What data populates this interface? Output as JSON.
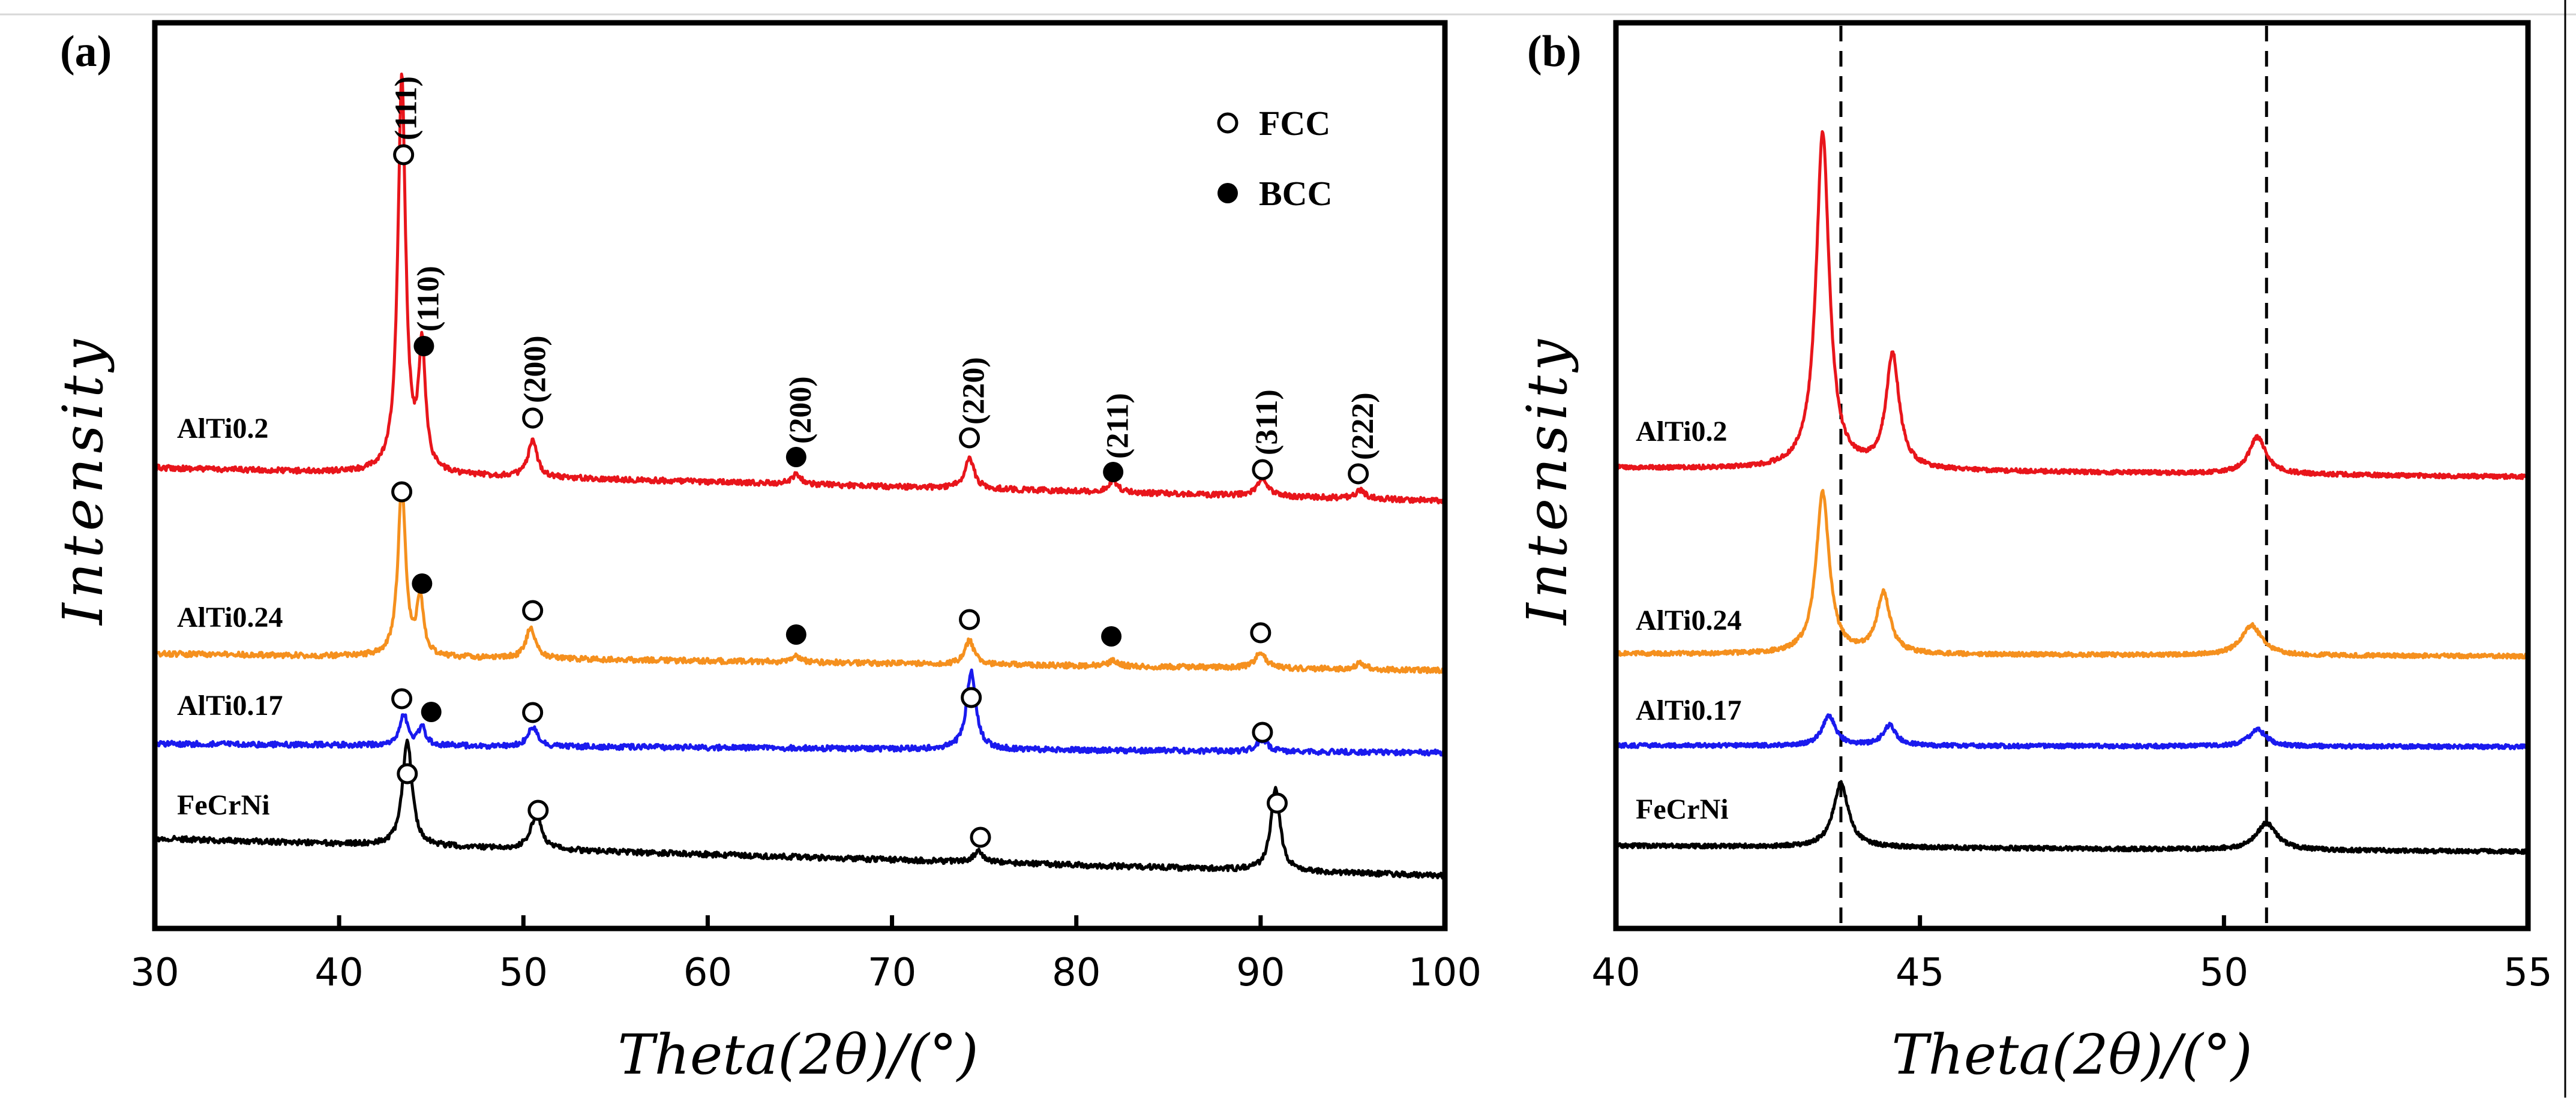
{
  "chart_data": [
    {
      "type": "line",
      "panel": "(a)",
      "xlabel": "Theta(2θ)/(°)",
      "ylabel": "Intensity",
      "xlim": [
        30,
        100
      ],
      "xticks": [
        "30",
        "40",
        "50",
        "60",
        "70",
        "80",
        "90",
        "100"
      ],
      "legend": [
        {
          "marker": "open-circle",
          "label": "FCC"
        },
        {
          "marker": "filled-circle",
          "label": "BCC"
        }
      ],
      "series": [
        {
          "name": "AlTi0.2",
          "color": "#e8151b",
          "peaks": [
            {
              "x": 43.4,
              "h": 10.0,
              "w": 0.25
            },
            {
              "x": 44.5,
              "h": 3.1,
              "w": 0.22
            },
            {
              "x": 50.5,
              "h": 0.9,
              "w": 0.3
            },
            {
              "x": 64.8,
              "h": 0.25,
              "w": 0.3
            },
            {
              "x": 74.2,
              "h": 0.8,
              "w": 0.3
            },
            {
              "x": 82.0,
              "h": 0.3,
              "w": 0.3
            },
            {
              "x": 90.1,
              "h": 0.45,
              "w": 0.35
            },
            {
              "x": 95.4,
              "h": 0.2,
              "w": 0.35
            }
          ]
        },
        {
          "name": "AlTi0.24",
          "color": "#f5901e",
          "peaks": [
            {
              "x": 43.4,
              "h": 4.3,
              "w": 0.25
            },
            {
              "x": 44.4,
              "h": 1.4,
              "w": 0.22
            },
            {
              "x": 50.4,
              "h": 0.8,
              "w": 0.3
            },
            {
              "x": 64.8,
              "h": 0.15,
              "w": 0.3
            },
            {
              "x": 74.2,
              "h": 0.6,
              "w": 0.3
            },
            {
              "x": 82.0,
              "h": 0.15,
              "w": 0.3
            },
            {
              "x": 90.0,
              "h": 0.4,
              "w": 0.35
            },
            {
              "x": 95.4,
              "h": 0.15,
              "w": 0.35
            }
          ]
        },
        {
          "name": "AlTi0.17",
          "color": "#1a1aee",
          "peaks": [
            {
              "x": 43.5,
              "h": 0.8,
              "w": 0.25
            },
            {
              "x": 44.5,
              "h": 0.5,
              "w": 0.22
            },
            {
              "x": 50.5,
              "h": 0.5,
              "w": 0.3
            },
            {
              "x": 74.3,
              "h": 2.0,
              "w": 0.3
            },
            {
              "x": 90.1,
              "h": 0.3,
              "w": 0.35
            }
          ]
        },
        {
          "name": "FeCrNi",
          "color": "#000000",
          "peaks": [
            {
              "x": 43.7,
              "h": 2.7,
              "w": 0.3
            },
            {
              "x": 50.7,
              "h": 0.9,
              "w": 0.35
            },
            {
              "x": 74.7,
              "h": 0.3,
              "w": 0.3
            },
            {
              "x": 90.8,
              "h": 2.1,
              "w": 0.3
            }
          ]
        }
      ],
      "annotations": [
        {
          "label": "(111)",
          "marker": "open"
        },
        {
          "label": "(110)",
          "marker": "filled"
        },
        {
          "label": "(200)",
          "marker": "open"
        },
        {
          "label": "(200)",
          "marker": "filled"
        },
        {
          "label": "(220)",
          "marker": "open"
        },
        {
          "label": "(211)",
          "marker": "filled"
        },
        {
          "label": "(311)",
          "marker": "open"
        },
        {
          "label": "(222)",
          "marker": "open"
        }
      ]
    },
    {
      "type": "line",
      "panel": "(b)",
      "xlabel": "Theta(2θ)/(°)",
      "ylabel": "Intensity",
      "xlim": [
        40,
        55
      ],
      "xticks": [
        "40",
        "45",
        "50",
        "55"
      ],
      "reference_lines": [
        43.7,
        50.7
      ],
      "series": [
        {
          "name": "AlTi0.2",
          "color": "#e8151b",
          "peaks": [
            {
              "x": 43.4,
              "h": 10.0,
              "w": 0.13
            },
            {
              "x": 44.55,
              "h": 3.4,
              "w": 0.13
            },
            {
              "x": 50.55,
              "h": 1.1,
              "w": 0.17
            }
          ]
        },
        {
          "name": "AlTi0.24",
          "color": "#f5901e",
          "peaks": [
            {
              "x": 43.4,
              "h": 4.8,
              "w": 0.13
            },
            {
              "x": 44.4,
              "h": 1.8,
              "w": 0.13
            },
            {
              "x": 50.45,
              "h": 0.9,
              "w": 0.2
            }
          ]
        },
        {
          "name": "AlTi0.17",
          "color": "#1a1aee",
          "peaks": [
            {
              "x": 43.5,
              "h": 0.9,
              "w": 0.13
            },
            {
              "x": 44.5,
              "h": 0.6,
              "w": 0.13
            },
            {
              "x": 50.55,
              "h": 0.5,
              "w": 0.17
            }
          ]
        },
        {
          "name": "FeCrNi",
          "color": "#000000",
          "peaks": [
            {
              "x": 43.7,
              "h": 1.9,
              "w": 0.15
            },
            {
              "x": 50.7,
              "h": 0.8,
              "w": 0.2
            }
          ]
        }
      ]
    }
  ]
}
